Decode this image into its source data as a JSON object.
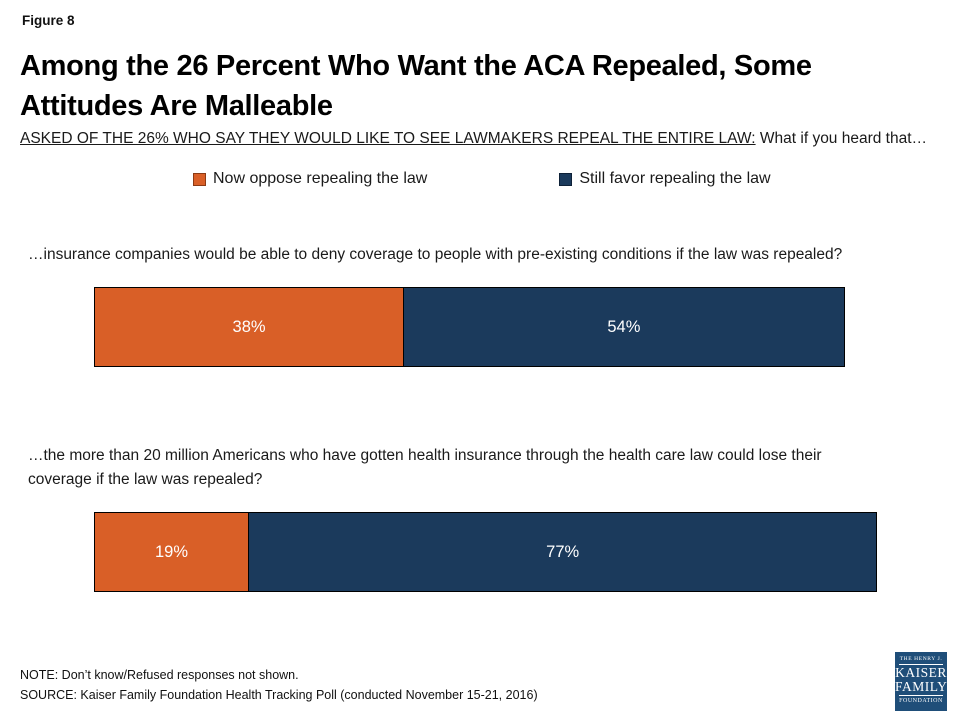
{
  "page": {
    "figure_label": "Figure 8",
    "title": "Among the 26 Percent Who Want the ACA Repealed, Some Attitudes Are Malleable",
    "subtitle_underlined": "ASKED OF THE 26% WHO SAY THEY WOULD LIKE TO SEE LAWMAKERS REPEAL THE ENTIRE LAW:",
    "subtitle_rest": " What if you heard that…"
  },
  "legend": {
    "items": [
      {
        "label": "Now oppose repealing the law",
        "color": "#D95F27"
      },
      {
        "label": "Still favor repealing the law",
        "color": "#1B3A5C"
      }
    ]
  },
  "chart_data": {
    "type": "bar",
    "orientation": "horizontal-stacked",
    "series_names": [
      "Now oppose repealing the law",
      "Still favor repealing the law"
    ],
    "colors": [
      "#D95F27",
      "#1B3A5C"
    ],
    "xlim": [
      0,
      100
    ],
    "grid": false,
    "legend_position": "top",
    "rows": [
      {
        "question": "…insurance companies would be able to deny coverage to people with pre-existing conditions if the law was repealed?",
        "values": [
          38,
          54
        ],
        "labels": [
          "38%",
          "54%"
        ]
      },
      {
        "question": "…the more than 20 million Americans who have gotten health insurance through the health care law could lose their coverage if the law was repealed?",
        "values": [
          19,
          77
        ],
        "labels": [
          "19%",
          "77%"
        ]
      }
    ]
  },
  "footer": {
    "note": "NOTE: Don’t know/Refused responses not shown.",
    "source": "SOURCE: Kaiser Family Foundation Health Tracking Poll (conducted November 15-21, 2016)"
  },
  "logo": {
    "line1": "THE HENRY J.",
    "line2": "KAISER",
    "line3": "FAMILY",
    "line4": "FOUNDATION",
    "color": "#1F4E79"
  }
}
